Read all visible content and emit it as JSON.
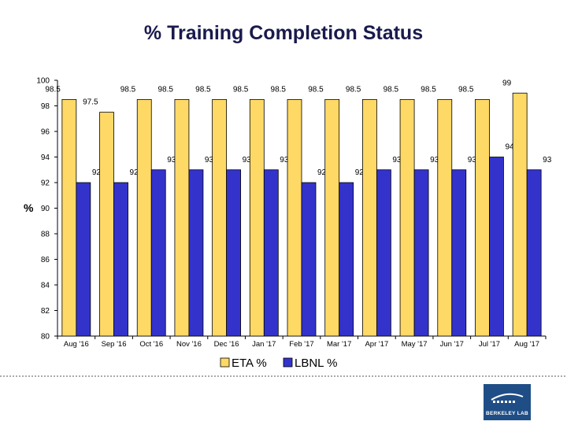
{
  "chart_data": {
    "type": "bar",
    "title": "% Training Completion Status",
    "xlabel": "",
    "ylabel": "%",
    "ylim": [
      80,
      100
    ],
    "yticks": [
      80,
      82,
      84,
      86,
      88,
      90,
      92,
      94,
      96,
      98,
      100
    ],
    "categories": [
      "Aug '16",
      "Sep '16",
      "Oct '16",
      "Nov '16",
      "Dec '16",
      "Jan '17",
      "Feb '17",
      "Mar '17",
      "Apr '17",
      "May '17",
      "Jun '17",
      "Jul '17",
      "Aug '17"
    ],
    "series": [
      {
        "name": "ETA %",
        "color": "#ffd966",
        "values": [
          98.5,
          97.5,
          98.5,
          98.5,
          98.5,
          98.5,
          98.5,
          98.5,
          98.5,
          98.5,
          98.5,
          98.5,
          99
        ],
        "labels": [
          "98.5",
          "97.5",
          "98.5",
          "98.5",
          "98.5",
          "98.5",
          "98.5",
          "98.5",
          "98.5",
          "98.5",
          "98.5",
          "98.5",
          "99"
        ]
      },
      {
        "name": "LBNL %",
        "color": "#3333cc",
        "values": [
          92,
          92,
          93,
          93,
          93,
          93,
          92,
          92,
          93,
          93,
          93,
          94,
          93
        ],
        "labels": [
          "92",
          "92",
          "93",
          "93",
          "93",
          "93",
          "92",
          "92",
          "93",
          "93",
          "93",
          "94",
          "93"
        ]
      }
    ],
    "legend": "bottom-center",
    "grid": false
  },
  "logo": {
    "text": "BERKELEY LAB",
    "color": "#1f4e86"
  }
}
